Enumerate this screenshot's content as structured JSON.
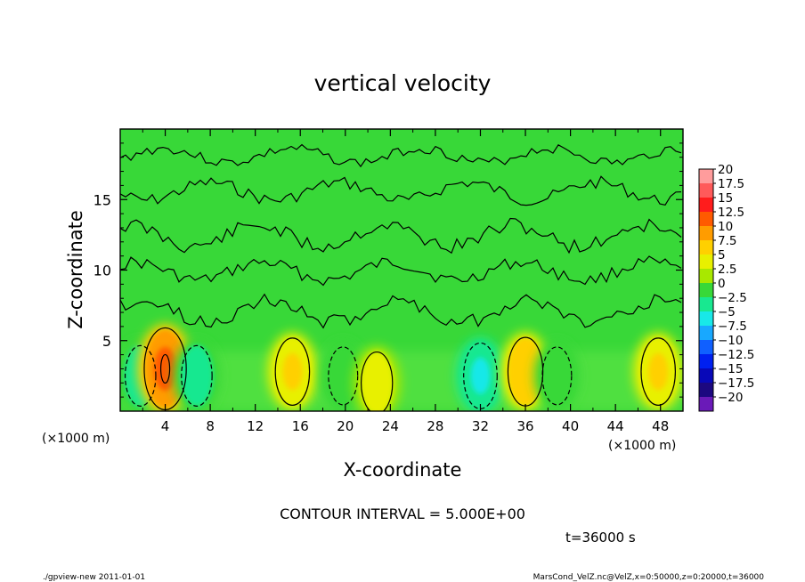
{
  "chart_data": {
    "type": "heatmap",
    "title": "vertical velocity",
    "xlabel": "X-coordinate",
    "ylabel": "Z-coordinate",
    "x_unit_left": "(×1000 m)",
    "x_unit_right": "(×1000 m)",
    "xlim": [
      0,
      50
    ],
    "ylim": [
      0,
      20
    ],
    "x_ticks": [
      "4",
      "8",
      "12",
      "16",
      "20",
      "24",
      "28",
      "32",
      "36",
      "40",
      "44",
      "48"
    ],
    "y_ticks": [
      "5",
      "10",
      "15"
    ],
    "x_tick_values": [
      4,
      8,
      12,
      16,
      20,
      24,
      28,
      32,
      36,
      40,
      44,
      48
    ],
    "y_tick_values": [
      5,
      10,
      15
    ],
    "colorbar": {
      "labels": [
        "20",
        "17.5",
        "15",
        "12.5",
        "10",
        "7.5",
        "5",
        "2.5",
        "0",
        "−2.5",
        "−5",
        "−7.5",
        "−10",
        "−12.5",
        "−15",
        "−17.5",
        "−20"
      ],
      "colors": [
        "#ff9c9c",
        "#ff5a5a",
        "#ff1c1c",
        "#ff5a00",
        "#ff9c00",
        "#ffd000",
        "#e8f000",
        "#a8e800",
        "#38d838",
        "#18e890",
        "#18e8e8",
        "#18a8ff",
        "#1060ff",
        "#0020f0",
        "#0808b8",
        "#1c0880",
        "#6a1ab8"
      ]
    },
    "cells": [
      {
        "x": 1.8,
        "z": 2.5,
        "w": -4.0
      },
      {
        "x": 4.0,
        "z": 3.0,
        "w": 12.0
      },
      {
        "x": 6.8,
        "z": 2.5,
        "w": -4.0
      },
      {
        "x": 15.3,
        "z": 2.8,
        "w": 6.5
      },
      {
        "x": 19.8,
        "z": 2.5,
        "w": -3.0
      },
      {
        "x": 22.8,
        "z": 2.0,
        "w": 4.5
      },
      {
        "x": 32.0,
        "z": 2.5,
        "w": -6.0
      },
      {
        "x": 36.0,
        "z": 2.8,
        "w": 7.0
      },
      {
        "x": 38.8,
        "z": 2.5,
        "w": -3.0
      },
      {
        "x": 47.8,
        "z": 2.8,
        "w": 6.5
      }
    ],
    "contour_interval_text": "CONTOUR INTERVAL = 5.000E+00",
    "time_text": "t=36000 s",
    "footer_left": "./gpview-new  2011-01-01",
    "footer_right": "MarsCond_VelZ.nc@VelZ,x=0:50000,z=0:20000,t=36000"
  }
}
